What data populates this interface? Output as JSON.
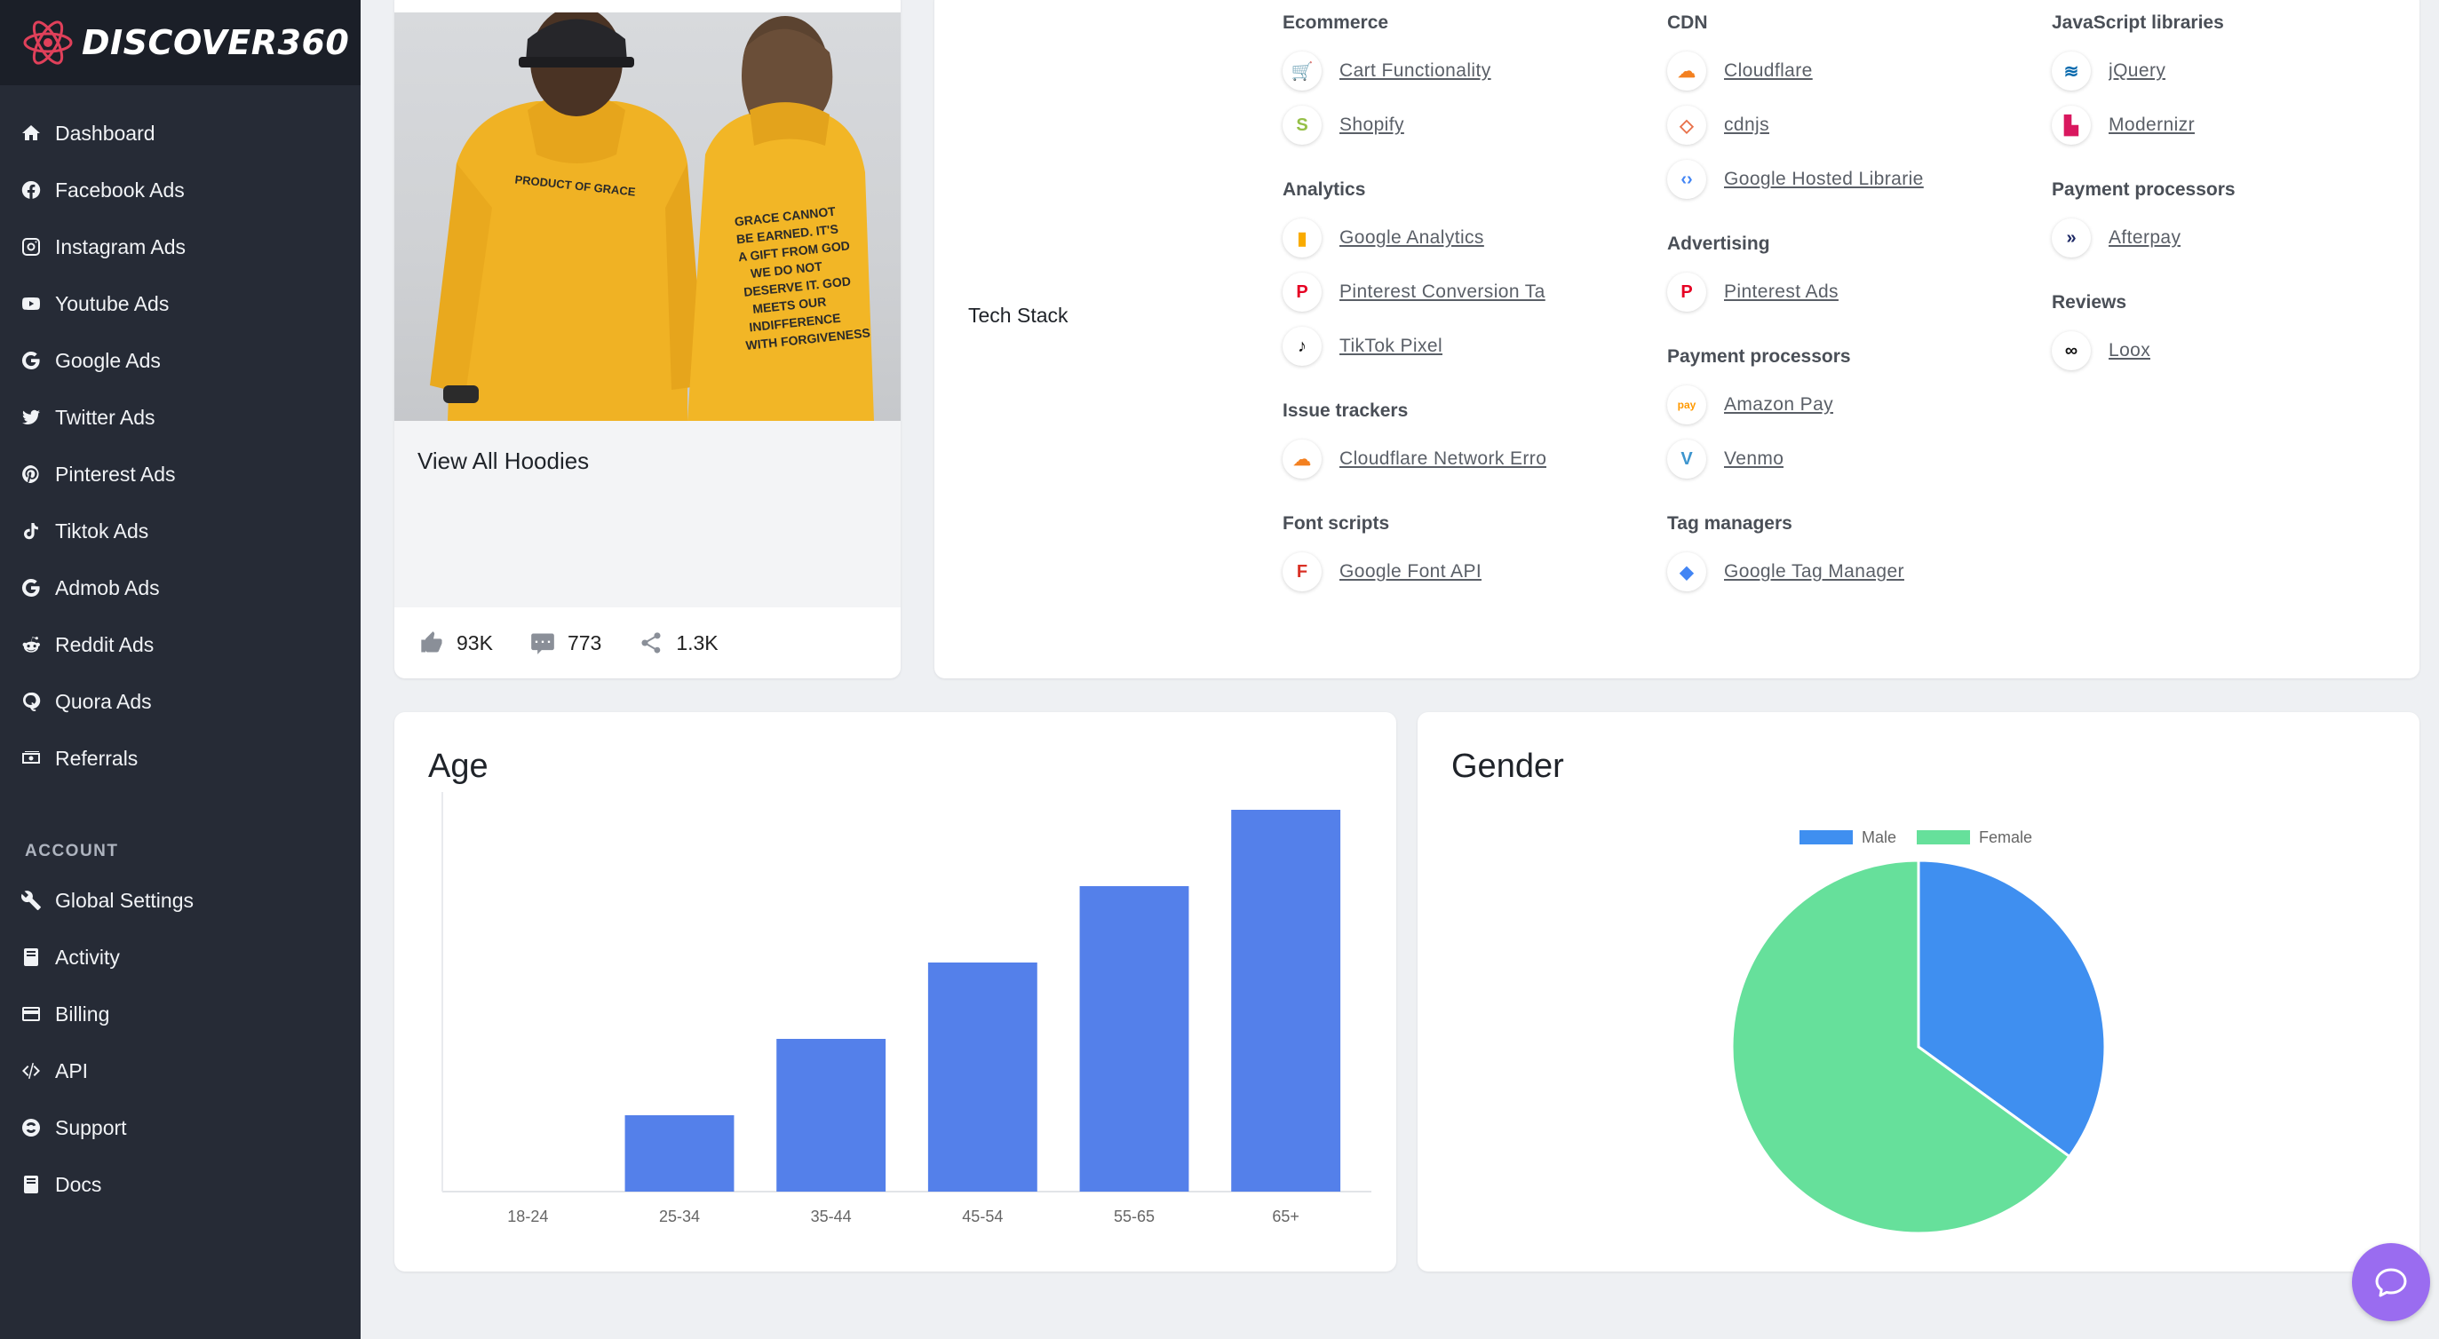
{
  "brand": {
    "name": "DISCOVER360"
  },
  "sidebar": {
    "main": [
      {
        "label": "Dashboard",
        "icon": "home-icon"
      },
      {
        "label": "Facebook Ads",
        "icon": "facebook-icon"
      },
      {
        "label": "Instagram Ads",
        "icon": "instagram-icon"
      },
      {
        "label": "Youtube Ads",
        "icon": "youtube-icon"
      },
      {
        "label": "Google Ads",
        "icon": "google-icon"
      },
      {
        "label": "Twitter Ads",
        "icon": "twitter-icon"
      },
      {
        "label": "Pinterest Ads",
        "icon": "pinterest-icon"
      },
      {
        "label": "Tiktok Ads",
        "icon": "tiktok-icon"
      },
      {
        "label": "Admob Ads",
        "icon": "google-icon"
      },
      {
        "label": "Reddit Ads",
        "icon": "reddit-icon"
      },
      {
        "label": "Quora Ads",
        "icon": "quora-icon"
      },
      {
        "label": "Referrals",
        "icon": "money-icon"
      }
    ],
    "account_label": "ACCOUNT",
    "account": [
      {
        "label": "Global Settings",
        "icon": "wrench-icon"
      },
      {
        "label": "Activity",
        "icon": "book-icon"
      },
      {
        "label": "Billing",
        "icon": "credit-card-icon"
      },
      {
        "label": "API",
        "icon": "code-icon"
      },
      {
        "label": "Support",
        "icon": "life-ring-icon"
      },
      {
        "label": "Docs",
        "icon": "book-icon"
      }
    ]
  },
  "product": {
    "title": "View All Hoodies",
    "likes": "93K",
    "comments": "773",
    "shares": "1.3K",
    "image_text_front": "PRODUCT OF GRACE",
    "image_text_back": "GRACE CANNOT BE EARNED. IT'S A GIFT FROM GOD. WE DO NOT DESERVE IT. GOD MEETS OUR INDIFFERENCE WITH FORGIVENESS"
  },
  "tech_stack": {
    "label": "Tech Stack",
    "columns": [
      [
        {
          "category": "Ecommerce",
          "items": [
            {
              "name": "Cart Functionality",
              "icon": "cart-icon",
              "color": "#111111"
            },
            {
              "name": "Shopify",
              "icon": "shopify-icon",
              "color": "#95bf47"
            }
          ]
        },
        {
          "category": "Analytics",
          "items": [
            {
              "name": "Google Analytics",
              "icon": "google-analytics-icon",
              "color": "#f9ab00"
            },
            {
              "name": "Pinterest Conversion Ta",
              "icon": "pinterest-icon",
              "color": "#e60023"
            },
            {
              "name": "TikTok Pixel",
              "icon": "tiktok-icon",
              "color": "#111111"
            }
          ]
        },
        {
          "category": "Issue trackers",
          "items": [
            {
              "name": "Cloudflare Network Erro",
              "icon": "cloudflare-icon",
              "color": "#f38020"
            }
          ]
        },
        {
          "category": "Font scripts",
          "items": [
            {
              "name": "Google Font API",
              "icon": "google-font-icon",
              "color": "#d93025"
            }
          ]
        }
      ],
      [
        {
          "category": "CDN",
          "items": [
            {
              "name": "Cloudflare",
              "icon": "cloudflare-icon",
              "color": "#f38020"
            },
            {
              "name": "cdnjs",
              "icon": "cdnjs-icon",
              "color": "#e8714a"
            },
            {
              "name": "Google Hosted Librarie",
              "icon": "google-hosted-icon",
              "color": "#4285f4"
            }
          ]
        },
        {
          "category": "Advertising",
          "items": [
            {
              "name": "Pinterest Ads",
              "icon": "pinterest-icon",
              "color": "#e60023"
            }
          ]
        },
        {
          "category": "Payment processors",
          "items": [
            {
              "name": "Amazon Pay",
              "icon": "amazon-pay-icon",
              "color": "#ff9900"
            },
            {
              "name": "Venmo",
              "icon": "venmo-icon",
              "color": "#3d95ce"
            }
          ]
        },
        {
          "category": "Tag managers",
          "items": [
            {
              "name": "Google Tag Manager",
              "icon": "tag-manager-icon",
              "color": "#4285f4"
            }
          ]
        }
      ],
      [
        {
          "category": "JavaScript libraries",
          "items": [
            {
              "name": "jQuery",
              "icon": "jquery-icon",
              "color": "#0769ad"
            },
            {
              "name": "Modernizr",
              "icon": "modernizr-icon",
              "color": "#d9185f"
            }
          ]
        },
        {
          "category": "Payment processors",
          "items": [
            {
              "name": "Afterpay",
              "icon": "afterpay-icon",
              "color": "#1f2a66"
            }
          ]
        },
        {
          "category": "Reviews",
          "items": [
            {
              "name": "Loox",
              "icon": "loox-icon",
              "color": "#111111"
            }
          ]
        }
      ]
    ]
  },
  "chart_data": [
    {
      "type": "bar",
      "title": "Age",
      "categories": [
        "18-24",
        "25-34",
        "35-44",
        "45-54",
        "55-65",
        "65+"
      ],
      "values": [
        0,
        10,
        20,
        30,
        40,
        50
      ],
      "ylim": [
        0,
        50
      ],
      "color": "#5480ea",
      "grid": false
    },
    {
      "type": "pie",
      "title": "Gender",
      "labels": [
        "Male",
        "Female"
      ],
      "values": [
        35,
        65
      ],
      "colors": [
        "#3f8ff0",
        "#66e09b"
      ],
      "legend": "top"
    }
  ],
  "colors": {
    "sidebar_bg": "#262b36",
    "brand_bg": "#1b1f28",
    "accent": "#9a6cf0"
  }
}
